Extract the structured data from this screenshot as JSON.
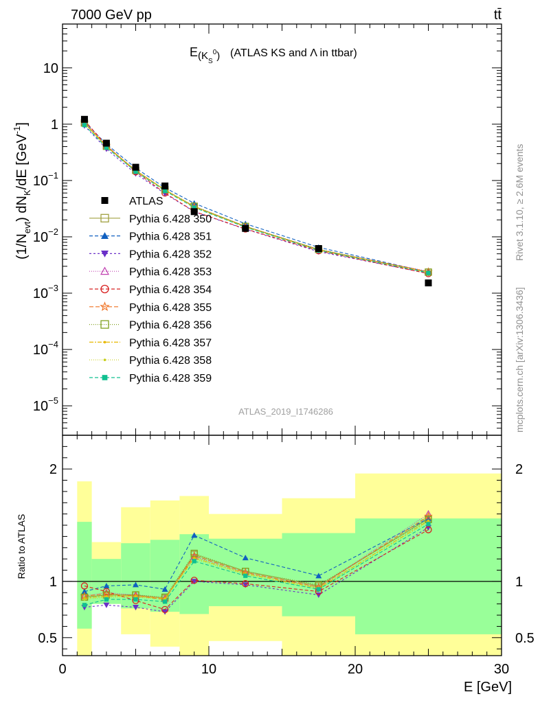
{
  "header": {
    "energy_label": "7000 GeV pp",
    "process_label": "tt̄"
  },
  "side_labels": {
    "rivet": "Rivet 3.1.10, ≥ 2.6M events",
    "mcplots": "mcplots.cern.ch [arXiv:1306.3436]"
  },
  "chart_data": [
    {
      "type": "line",
      "panel": "main",
      "title_main": "E",
      "title_sub": "(K",
      "title_sub_script": "S",
      "title_sup": "0",
      "title_close": ")",
      "title_rest": "(ATLAS KS and Λ in ttbar)",
      "ylabel": "(1/N_evt) dN_K/dE [GeV^-1]",
      "ylabel_parts": {
        "a": "(1/N",
        "a_sub": "evt",
        "b": ") dN",
        "b_sub": "K",
        "c": "/dE [GeV",
        "c_sup": "-1",
        "d": "]"
      },
      "analysis_label": "ATLAS_2019_I1746286",
      "xlim": [
        0,
        30
      ],
      "ylim": [
        3e-06,
        60
      ],
      "yscale": "log",
      "ytick_labels": [
        {
          "v": 10,
          "m": "10",
          "e": ""
        },
        {
          "v": 1,
          "m": "1",
          "e": ""
        },
        {
          "v": 0.1,
          "m": "10",
          "e": "−1"
        },
        {
          "v": 0.01,
          "m": "10",
          "e": "−2"
        },
        {
          "v": 0.001,
          "m": "10",
          "e": "−3"
        },
        {
          "v": 0.0001,
          "m": "10",
          "e": "−4"
        },
        {
          "v": 1e-05,
          "m": "10",
          "e": "−5"
        }
      ],
      "legend_position": "left-middle",
      "data": {
        "name": "ATLAS",
        "x": [
          1.5,
          3,
          5,
          7,
          9,
          12.5,
          17.5,
          25
        ],
        "y": [
          1.22,
          0.46,
          0.172,
          0.08,
          0.028,
          0.0141,
          0.0062,
          0.00152
        ]
      },
      "series": [
        {
          "name": "Pythia 6.428 350",
          "color": "#a0a040",
          "dash": "",
          "marker": "square-open",
          "ratio": [
            0.86,
            0.88,
            0.88,
            0.85,
            1.24,
            1.09,
            0.96,
            1.56
          ]
        },
        {
          "name": "Pythia 6.428 351",
          "color": "#1060c0",
          "dash": "5,3",
          "marker": "triangle-up",
          "ratio": [
            0.91,
            0.96,
            0.97,
            0.93,
            1.41,
            1.21,
            1.05,
            1.56
          ]
        },
        {
          "name": "Pythia 6.428 352",
          "color": "#6a30c8",
          "dash": "3,3",
          "marker": "triangle-down",
          "ratio": [
            0.77,
            0.79,
            0.77,
            0.73,
            1.0,
            0.97,
            0.88,
            1.48
          ]
        },
        {
          "name": "Pythia 6.428 353",
          "color": "#c040b0",
          "dash": "1,2",
          "marker": "triangle-open",
          "ratio": [
            0.87,
            0.9,
            0.88,
            0.85,
            1.22,
            1.08,
            0.95,
            1.6
          ]
        },
        {
          "name": "Pythia 6.428 354",
          "color": "#d82020",
          "dash": "5,3",
          "marker": "circle-open",
          "ratio": [
            0.96,
            0.91,
            0.83,
            0.75,
            1.01,
            0.98,
            0.91,
            1.46
          ]
        },
        {
          "name": "Pythia 6.428 355",
          "color": "#f07020",
          "dash": "6,3",
          "marker": "star-open",
          "ratio": [
            0.87,
            0.89,
            0.87,
            0.84,
            1.23,
            1.08,
            0.95,
            1.58
          ]
        },
        {
          "name": "Pythia 6.428 356",
          "color": "#80a020",
          "dash": "1,2",
          "marker": "square-open",
          "ratio": [
            0.86,
            0.88,
            0.88,
            0.86,
            1.25,
            1.09,
            0.97,
            1.55
          ]
        },
        {
          "name": "Pythia 6.428 357",
          "color": "#e8b800",
          "dash": "6,2,2,2",
          "marker": "dot",
          "ratio": [
            0.85,
            0.87,
            0.87,
            0.85,
            1.21,
            1.07,
            0.94,
            1.54
          ]
        },
        {
          "name": "Pythia 6.428 358",
          "color": "#c8d020",
          "dash": "1,2",
          "marker": "dot",
          "ratio": [
            0.84,
            0.86,
            0.86,
            0.84,
            1.2,
            1.06,
            0.93,
            1.53
          ]
        },
        {
          "name": "Pythia 6.428 359",
          "color": "#10c090",
          "dash": "5,3",
          "marker": "square",
          "ratio": [
            0.79,
            0.84,
            0.84,
            0.82,
            1.18,
            1.05,
            0.93,
            1.51
          ]
        }
      ]
    },
    {
      "type": "line",
      "panel": "ratio",
      "xlabel": "E [GeV]",
      "ylabel": "Ratio to ATLAS",
      "xlim": [
        0,
        30
      ],
      "ylim": [
        0.34,
        2.3
      ],
      "yscale": "linear",
      "xticks": [
        0,
        10,
        20,
        30
      ],
      "yticks": [
        0.5,
        1,
        2
      ],
      "ytick_labels_left": [
        "0.5",
        "1",
        "2"
      ],
      "ytick_labels_right": [
        "0.5",
        "1",
        "2"
      ],
      "xtick_labels": [
        "0",
        "10",
        "20",
        "30"
      ],
      "bands": [
        {
          "x0": 1,
          "x1": 2,
          "g": [
            0.58,
            1.53
          ],
          "y": [
            0.34,
            1.89
          ]
        },
        {
          "x0": 2,
          "x1": 4,
          "g": [
            0.8,
            1.2
          ],
          "y": [
            0.8,
            1.35
          ]
        },
        {
          "x0": 4,
          "x1": 6,
          "g": [
            0.76,
            1.34
          ],
          "y": [
            0.53,
            1.66
          ]
        },
        {
          "x0": 6,
          "x1": 8,
          "g": [
            0.73,
            1.37
          ],
          "y": [
            0.42,
            1.72
          ]
        },
        {
          "x0": 8,
          "x1": 10,
          "g": [
            0.71,
            1.42
          ],
          "y": [
            0.34,
            1.76
          ]
        },
        {
          "x0": 10,
          "x1": 15,
          "g": [
            0.78,
            1.38
          ],
          "y": [
            0.47,
            1.6
          ]
        },
        {
          "x0": 15,
          "x1": 20,
          "g": [
            0.69,
            1.43
          ],
          "y": [
            0.34,
            1.74
          ]
        },
        {
          "x0": 20,
          "x1": 30,
          "g": [
            0.53,
            1.56
          ],
          "y": [
            0.34,
            1.96
          ]
        }
      ]
    }
  ]
}
